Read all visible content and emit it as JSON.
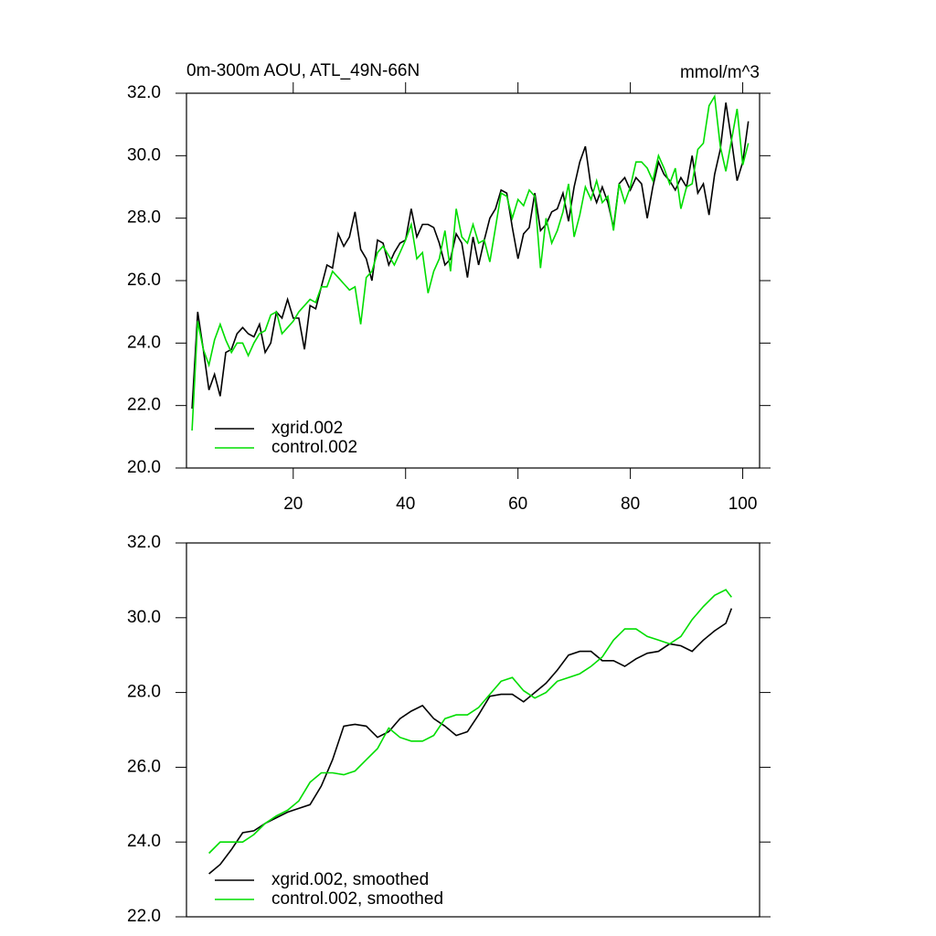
{
  "chart_data": [
    {
      "type": "line",
      "title": "0m-300m AOU, ATL_49N-66N",
      "right_title": "mmol/m^3",
      "x": [
        2,
        3,
        4,
        5,
        6,
        7,
        8,
        9,
        10,
        11,
        12,
        13,
        14,
        15,
        16,
        17,
        18,
        19,
        20,
        21,
        22,
        23,
        24,
        25,
        26,
        27,
        28,
        29,
        30,
        31,
        32,
        33,
        34,
        35,
        36,
        37,
        38,
        39,
        40,
        41,
        42,
        43,
        44,
        45,
        46,
        47,
        48,
        49,
        50,
        51,
        52,
        53,
        54,
        55,
        56,
        57,
        58,
        59,
        60,
        61,
        62,
        63,
        64,
        65,
        66,
        67,
        68,
        69,
        70,
        71,
        72,
        73,
        74,
        75,
        76,
        77,
        78,
        79,
        80,
        81,
        82,
        83,
        84,
        85,
        86,
        87,
        88,
        89,
        90,
        91,
        92,
        93,
        94,
        95,
        96,
        97,
        98,
        99,
        100,
        101
      ],
      "series": [
        {
          "name": "xgrid.002",
          "color": "#000000",
          "values": [
            21.9,
            25.0,
            23.8,
            22.5,
            23.0,
            22.3,
            23.7,
            23.8,
            24.3,
            24.5,
            24.3,
            24.2,
            24.6,
            23.7,
            24.0,
            25.0,
            24.8,
            25.4,
            24.8,
            24.8,
            23.8,
            25.2,
            25.1,
            25.8,
            26.5,
            26.4,
            27.5,
            27.1,
            27.4,
            28.2,
            27.0,
            26.7,
            26.0,
            27.3,
            27.2,
            26.5,
            26.9,
            27.2,
            27.3,
            28.3,
            27.4,
            27.8,
            27.8,
            27.7,
            27.2,
            26.5,
            26.7,
            27.5,
            27.2,
            26.1,
            27.4,
            26.5,
            27.3,
            28.0,
            28.3,
            28.9,
            28.8,
            27.7,
            26.7,
            27.5,
            27.7,
            28.8,
            27.6,
            27.8,
            28.2,
            28.3,
            28.8,
            27.9,
            29.0,
            29.8,
            30.3,
            29.0,
            28.5,
            29.0,
            28.5,
            27.7,
            29.1,
            29.3,
            28.9,
            29.3,
            29.1,
            28.0,
            29.0,
            29.8,
            29.4,
            29.2,
            28.9,
            29.3,
            29.0,
            30.0,
            28.8,
            29.1,
            28.1,
            29.4,
            30.2,
            31.7,
            30.5,
            29.2,
            29.8,
            31.1
          ]
        },
        {
          "name": "control.002",
          "color": "#00dd00",
          "values": [
            21.2,
            24.7,
            23.8,
            23.3,
            24.1,
            24.6,
            24.1,
            23.7,
            24.0,
            24.0,
            23.6,
            24.0,
            24.3,
            24.4,
            24.9,
            25.0,
            24.3,
            24.5,
            24.7,
            25.0,
            25.2,
            25.4,
            25.3,
            25.8,
            25.8,
            26.3,
            26.1,
            25.9,
            25.7,
            25.8,
            24.6,
            26.1,
            26.3,
            26.9,
            27.1,
            26.8,
            26.5,
            26.9,
            27.3,
            27.8,
            26.7,
            26.9,
            25.6,
            26.3,
            26.7,
            27.6,
            26.3,
            28.3,
            27.4,
            27.2,
            27.8,
            27.2,
            27.3,
            26.6,
            27.7,
            28.8,
            28.7,
            28.0,
            28.6,
            28.4,
            28.9,
            28.7,
            26.4,
            28.0,
            27.2,
            27.6,
            28.2,
            29.1,
            27.4,
            28.1,
            29.0,
            28.6,
            29.2,
            28.5,
            28.7,
            27.6,
            29.1,
            28.5,
            29.0,
            29.8,
            29.8,
            29.6,
            29.2,
            30.0,
            29.6,
            29.1,
            29.6,
            28.3,
            29.0,
            29.1,
            30.2,
            30.4,
            31.6,
            31.9,
            30.3,
            29.5,
            30.5,
            31.5,
            29.7,
            30.4
          ]
        }
      ],
      "xlim": [
        1,
        103
      ],
      "ylim": [
        20,
        32
      ],
      "xticks": [
        20,
        40,
        60,
        80,
        100
      ],
      "yticks": [
        {
          "value": 20,
          "label": "20.0"
        },
        {
          "value": 22,
          "label": "22.0"
        },
        {
          "value": 24,
          "label": "24.0"
        },
        {
          "value": 26,
          "label": "26.0"
        },
        {
          "value": 28,
          "label": "28.0"
        },
        {
          "value": 30,
          "label": "30.0"
        },
        {
          "value": 32,
          "label": "32.0"
        }
      ]
    },
    {
      "type": "line",
      "x": [
        5,
        7,
        9,
        11,
        13,
        15,
        17,
        19,
        21,
        23,
        25,
        27,
        29,
        31,
        33,
        35,
        37,
        39,
        41,
        43,
        45,
        47,
        49,
        51,
        53,
        55,
        57,
        59,
        61,
        63,
        65,
        67,
        69,
        71,
        73,
        75,
        77,
        79,
        81,
        83,
        85,
        87,
        89,
        91,
        93,
        95,
        97,
        98
      ],
      "series": [
        {
          "name": "xgrid.002, smoothed",
          "color": "#000000",
          "values": [
            23.15,
            23.4,
            23.8,
            24.25,
            24.3,
            24.5,
            24.65,
            24.8,
            24.9,
            25.0,
            25.5,
            26.2,
            27.1,
            27.15,
            27.1,
            26.8,
            26.95,
            27.3,
            27.5,
            27.65,
            27.3,
            27.1,
            26.85,
            26.95,
            27.4,
            27.9,
            27.95,
            27.95,
            27.75,
            28.0,
            28.25,
            28.6,
            29.0,
            29.1,
            29.1,
            28.85,
            28.85,
            28.7,
            28.9,
            29.05,
            29.1,
            29.3,
            29.25,
            29.1,
            29.4,
            29.65,
            29.85,
            30.25
          ]
        },
        {
          "name": "control.002, smoothed",
          "color": "#00dd00",
          "values": [
            23.7,
            24.0,
            24.0,
            24.0,
            24.2,
            24.5,
            24.7,
            24.85,
            25.1,
            25.6,
            25.85,
            25.85,
            25.8,
            25.9,
            26.2,
            26.5,
            27.05,
            26.8,
            26.7,
            26.7,
            26.85,
            27.3,
            27.4,
            27.4,
            27.6,
            27.95,
            28.3,
            28.4,
            28.05,
            27.85,
            28.0,
            28.3,
            28.4,
            28.5,
            28.7,
            28.95,
            29.4,
            29.7,
            29.7,
            29.5,
            29.4,
            29.3,
            29.5,
            29.95,
            30.3,
            30.6,
            30.75,
            30.55
          ]
        }
      ],
      "xlim": [
        1,
        103
      ],
      "ylim": [
        22,
        32
      ],
      "yticks": [
        {
          "value": 22,
          "label": "22.0"
        },
        {
          "value": 24,
          "label": "24.0"
        },
        {
          "value": 26,
          "label": "26.0"
        },
        {
          "value": 28,
          "label": "28.0"
        },
        {
          "value": 30,
          "label": "30.0"
        },
        {
          "value": 32,
          "label": "32.0"
        }
      ]
    }
  ]
}
